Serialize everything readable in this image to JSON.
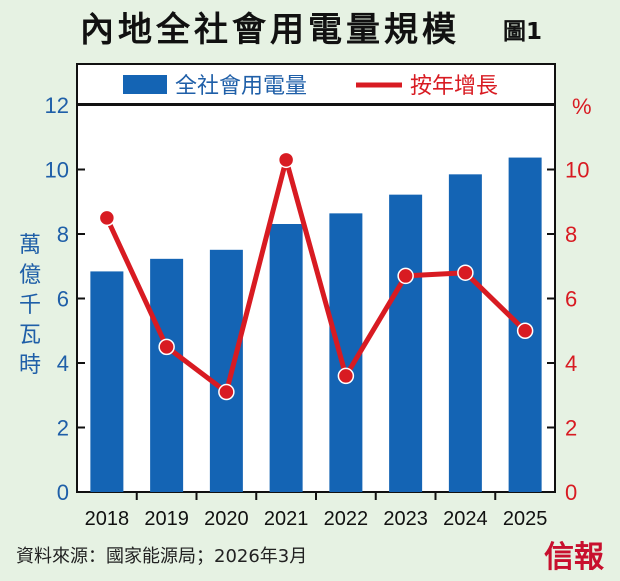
{
  "header": {
    "title": "內地全社會用電量規模",
    "figure_no": "圖1"
  },
  "footer": {
    "source": "資料來源：國家能源局；2026年3月",
    "logo": "信報"
  },
  "colors": {
    "bar": "#1464b4",
    "line": "#d81b22",
    "left_axis": "#1f5fa8",
    "right_axis": "#d81b22",
    "background": "#e6f2e3"
  },
  "chart_data": {
    "type": "bar",
    "categories": [
      "2018",
      "2019",
      "2020",
      "2021",
      "2022",
      "2023",
      "2024",
      "2025"
    ],
    "series": [
      {
        "name": "全社會用電量",
        "type": "bar",
        "axis": "left",
        "values": [
          6.84,
          7.23,
          7.51,
          8.31,
          8.64,
          9.22,
          9.85,
          10.37
        ]
      },
      {
        "name": "按年增長",
        "type": "line",
        "axis": "right",
        "values": [
          8.5,
          4.5,
          3.1,
          10.3,
          3.6,
          6.7,
          6.8,
          5.0
        ]
      }
    ],
    "ylabel": "萬億千瓦時",
    "ylabel_right": "%",
    "ylim": [
      0,
      12
    ],
    "ylim_right": [
      0,
      12
    ],
    "yticks": [
      "0",
      "2",
      "4",
      "6",
      "8",
      "10",
      "12"
    ],
    "yticks_right": [
      "0",
      "2",
      "4",
      "6",
      "8",
      "10"
    ],
    "legend_position": "top",
    "grid": false
  }
}
